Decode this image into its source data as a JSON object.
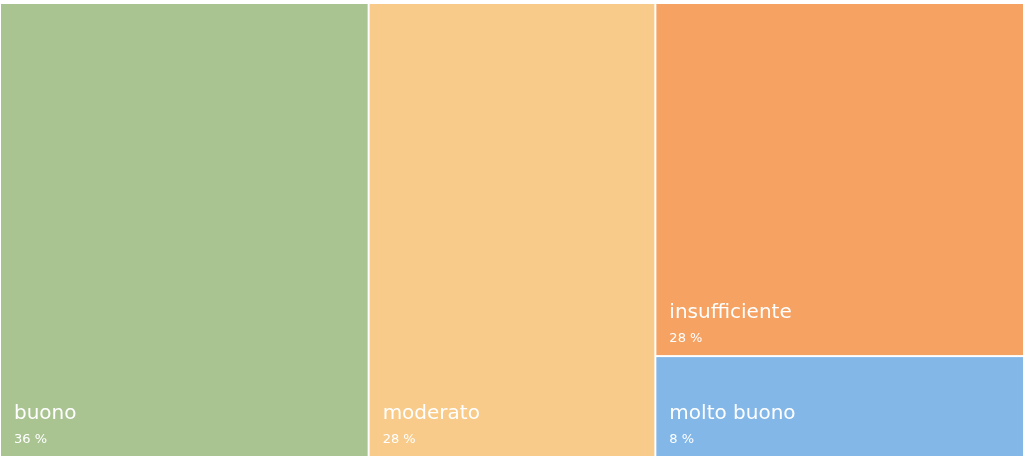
{
  "chart_data": {
    "type": "other",
    "categories": [
      "buono",
      "moderato",
      "insufficiente",
      "molto buono"
    ],
    "values": [
      36,
      28,
      28,
      8
    ],
    "value_labels": [
      "36 %",
      "28 %",
      "28 %",
      "8 %"
    ],
    "colors": [
      "#a9c491",
      "#f8cb8a",
      "#f5a263",
      "#82b7e8"
    ]
  }
}
